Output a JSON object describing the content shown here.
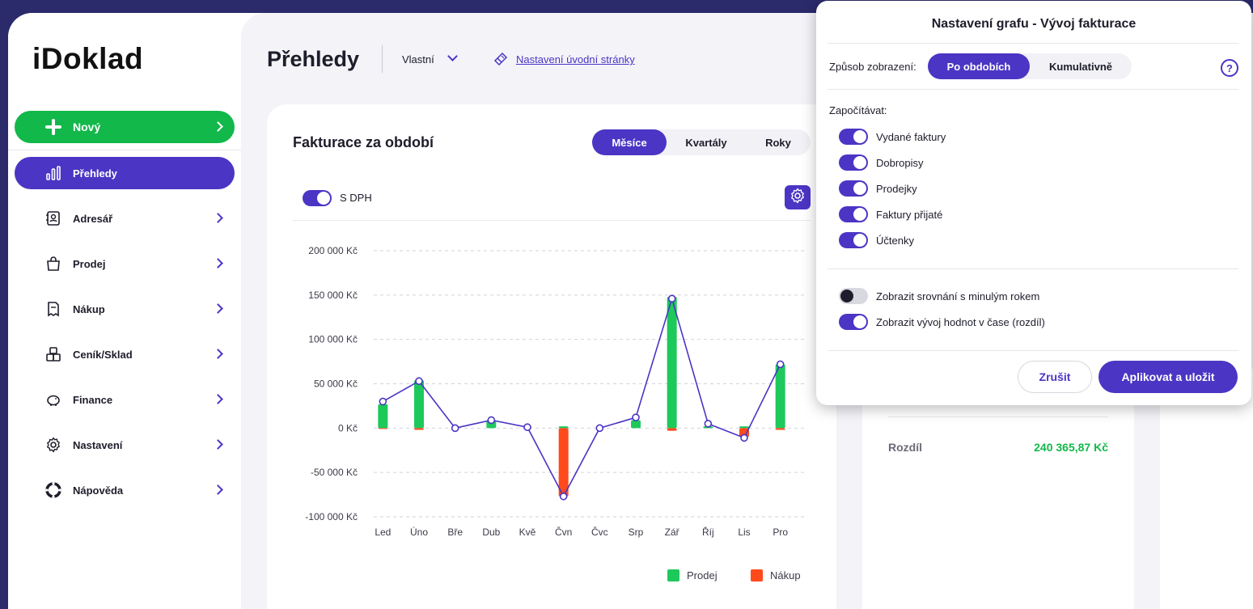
{
  "app": {
    "logo_text": "iDoklad"
  },
  "sidebar": {
    "new_button": "Nový",
    "items": [
      {
        "label": "Přehledy",
        "icon": "bar-chart-icon",
        "active": true
      },
      {
        "label": "Adresář",
        "icon": "address-book-icon"
      },
      {
        "label": "Prodej",
        "icon": "shopping-bag-icon"
      },
      {
        "label": "Nákup",
        "icon": "receipt-icon"
      },
      {
        "label": "Ceník/Sklad",
        "icon": "boxes-icon"
      },
      {
        "label": "Finance",
        "icon": "piggy-bank-icon"
      },
      {
        "label": "Nastavení",
        "icon": "gear-icon"
      },
      {
        "label": "Nápověda",
        "icon": "lifebuoy-icon"
      }
    ]
  },
  "header": {
    "title": "Přehledy",
    "view_select": "Vlastní",
    "settings_link": "Nastavení úvodní stránky"
  },
  "chart_card": {
    "title": "Fakturace za období",
    "period_tabs": [
      "Měsíce",
      "Kvartály",
      "Roky"
    ],
    "active_period": "Měsíce",
    "vat_toggle_label": "S DPH",
    "vat_toggle_on": true
  },
  "chart_data": {
    "type": "bar",
    "categories": [
      "Led",
      "Úno",
      "Bře",
      "Dub",
      "Kvě",
      "Čvn",
      "Čvc",
      "Srp",
      "Zář",
      "Říj",
      "Lis",
      "Pro"
    ],
    "series": [
      {
        "name": "Prodej",
        "color": "#1ec95b",
        "values": [
          27000,
          54000,
          0,
          8000,
          0,
          2000,
          0,
          9000,
          148000,
          2000,
          2000,
          72000
        ]
      },
      {
        "name": "Nákup",
        "color": "#ff4a1c",
        "values": [
          -1000,
          -2000,
          0,
          0,
          0,
          -77000,
          0,
          0,
          -3000,
          0,
          -10000,
          -2000
        ]
      }
    ],
    "line": {
      "values": [
        30000,
        53000,
        0,
        9000,
        1000,
        -77000,
        0,
        12000,
        146000,
        5000,
        -11000,
        72000
      ],
      "color": "#4b35c4"
    },
    "y_ticks": [
      "200 000 Kč",
      "150 000 Kč",
      "100 000 Kč",
      "50 000 Kč",
      "0 Kč",
      "-50 000 Kč",
      "-100 000 Kč"
    ],
    "ylim": [
      -100000,
      200000
    ],
    "legend_position": "bottom-right",
    "grid": true
  },
  "summary_card": {
    "rozdil_label": "Rozdíl",
    "rozdil_value": "240 365,87 Kč"
  },
  "dialog": {
    "title": "Nastavení grafu - Vývoj fakturace",
    "mode_label": "Způsob zobrazení:",
    "mode_options": [
      "Po obdobích",
      "Kumulativně"
    ],
    "active_mode": "Po obdobích",
    "count_label": "Započítávat:",
    "options": [
      {
        "label": "Vydané faktury",
        "on": true
      },
      {
        "label": "Dobropisy",
        "on": true
      },
      {
        "label": "Prodejky",
        "on": true
      },
      {
        "label": "Faktury přijaté",
        "on": true
      },
      {
        "label": "Účtenky",
        "on": true
      }
    ],
    "extra_options": [
      {
        "label": "Zobrazit srovnání s minulým rokem",
        "on": false
      },
      {
        "label": "Zobrazit vývoj hodnot v čase (rozdíl)",
        "on": true
      }
    ],
    "cancel": "Zrušit",
    "apply": "Aplikovat a uložit"
  },
  "colors": {
    "accent": "#4b35c4",
    "green": "#12b84a",
    "red": "#ff4a1c"
  }
}
